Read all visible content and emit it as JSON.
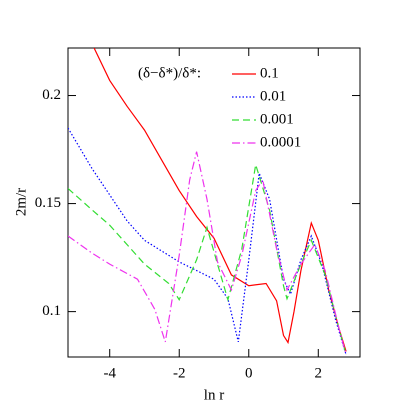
{
  "chart_data": {
    "type": "line",
    "xlabel": "ln r",
    "ylabel": "2m/r",
    "legend_title": "(δ−δ*)/δ*:",
    "xlim": [
      -5.2,
      3.2
    ],
    "ylim": [
      0.079,
      0.222
    ],
    "xticks": [
      -4,
      -2,
      0,
      2
    ],
    "yticks": [
      0.1,
      0.15,
      0.2
    ],
    "legend": "upper right",
    "series": [
      {
        "name": "0.1",
        "color": "#ff0000",
        "dash": "solid",
        "x": [
          -4.45,
          -4,
          -3.5,
          -3,
          -2.5,
          -2,
          -1.5,
          -1,
          -0.5,
          0,
          0.5,
          0.8,
          1.0,
          1.13,
          1.3,
          1.5,
          1.8,
          2.0,
          2.3,
          2.6,
          2.8
        ],
        "values": [
          0.222,
          0.207,
          0.195,
          0.184,
          0.17,
          0.156,
          0.144,
          0.134,
          0.117,
          0.112,
          0.113,
          0.105,
          0.089,
          0.0857,
          0.1,
          0.119,
          0.141,
          0.133,
          0.11,
          0.092,
          0.0816
        ]
      },
      {
        "name": "0.01",
        "color": "#0000ff",
        "dash": "dotted",
        "x": [
          -5.2,
          -4.5,
          -4,
          -3.5,
          -3,
          -2,
          -1,
          -0.6,
          -0.3,
          0,
          0.3,
          0.6,
          1.0,
          1.2,
          1.5,
          1.8,
          2.1,
          2.5,
          2.8
        ],
        "values": [
          0.185,
          0.166,
          0.154,
          0.142,
          0.133,
          0.123,
          0.115,
          0.106,
          0.086,
          0.124,
          0.164,
          0.152,
          0.115,
          0.108,
          0.124,
          0.135,
          0.122,
          0.096,
          0.08
        ]
      },
      {
        "name": "0.001",
        "color": "#33dd33",
        "dash": "dashed",
        "x": [
          -5.2,
          -4.5,
          -4,
          -3,
          -2.3,
          -2.0,
          -1.5,
          -1.2,
          -0.9,
          -0.6,
          -0.2,
          0.2,
          0.6,
          1.0,
          1.1,
          1.5,
          1.8,
          2.2,
          2.6,
          2.8
        ],
        "values": [
          0.157,
          0.147,
          0.14,
          0.122,
          0.113,
          0.1055,
          0.124,
          0.139,
          0.122,
          0.1055,
          0.129,
          0.168,
          0.147,
          0.112,
          0.106,
          0.122,
          0.133,
          0.117,
          0.092,
          0.08
        ]
      },
      {
        "name": "0.0001",
        "color": "#ee33ee",
        "dash": "dashdot",
        "x": [
          -5.2,
          -4.5,
          -4,
          -3.2,
          -2.7,
          -2.4,
          -2,
          -1.7,
          -1.5,
          -1.2,
          -0.9,
          -0.5,
          -0.2,
          0.2,
          0.4,
          0.8,
          1.1,
          1.5,
          1.9,
          2.2,
          2.6,
          2.8
        ],
        "values": [
          0.135,
          0.127,
          0.122,
          0.115,
          0.101,
          0.086,
          0.126,
          0.161,
          0.174,
          0.152,
          0.123,
          0.11,
          0.126,
          0.156,
          0.161,
          0.129,
          0.11,
          0.122,
          0.131,
          0.119,
          0.092,
          0.08
        ]
      }
    ]
  }
}
